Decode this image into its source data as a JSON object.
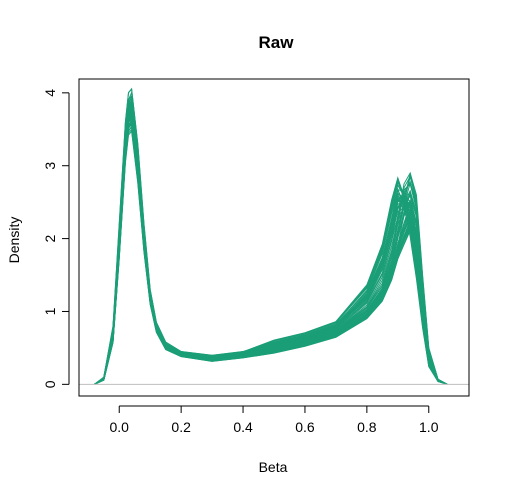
{
  "chart_data": {
    "type": "line",
    "title": "Raw",
    "xlabel": "Beta",
    "ylabel": "Density",
    "xlim": [
      -0.13,
      1.13
    ],
    "ylim": [
      -0.16,
      4.19
    ],
    "xticks": [
      0.0,
      0.2,
      0.4,
      0.6,
      0.8,
      1.0
    ],
    "xtick_labels": [
      "0.0",
      "0.2",
      "0.4",
      "0.6",
      "0.8",
      "1.0"
    ],
    "yticks": [
      0,
      1,
      2,
      3,
      4
    ],
    "ytick_labels": [
      "0",
      "1",
      "2",
      "3",
      "4"
    ],
    "grid": false,
    "legend": "none",
    "zero_line": true,
    "line_color": "#1b9e77",
    "zero_line_color": "#bebebe",
    "series_count": 60,
    "series": [
      {
        "x": [
          -0.08,
          -0.05,
          -0.02,
          0.0,
          0.02,
          0.03,
          0.04,
          0.06,
          0.08,
          0.1,
          0.12,
          0.15,
          0.2,
          0.3,
          0.4,
          0.5,
          0.6,
          0.7,
          0.8,
          0.85,
          0.88,
          0.9,
          0.92,
          0.94,
          0.96,
          0.98,
          1.0,
          1.03,
          1.06
        ],
        "y": [
          0.0,
          0.08,
          0.7,
          2.0,
          3.4,
          3.85,
          3.95,
          3.2,
          2.1,
          1.25,
          0.8,
          0.55,
          0.42,
          0.37,
          0.42,
          0.5,
          0.58,
          0.72,
          1.0,
          1.3,
          1.65,
          2.05,
          2.5,
          2.85,
          2.5,
          1.4,
          0.45,
          0.06,
          0.0
        ]
      },
      {
        "x": [
          -0.08,
          -0.05,
          -0.02,
          0.0,
          0.02,
          0.03,
          0.04,
          0.06,
          0.08,
          0.1,
          0.12,
          0.15,
          0.2,
          0.3,
          0.4,
          0.5,
          0.6,
          0.7,
          0.8,
          0.85,
          0.88,
          0.9,
          0.92,
          0.94,
          0.96,
          0.98,
          1.0,
          1.03,
          1.06
        ],
        "y": [
          0.0,
          0.06,
          0.6,
          1.8,
          3.2,
          3.6,
          3.65,
          2.9,
          1.9,
          1.15,
          0.75,
          0.5,
          0.4,
          0.33,
          0.38,
          0.45,
          0.55,
          0.68,
          0.95,
          1.2,
          1.5,
          1.8,
          2.0,
          2.2,
          1.9,
          1.1,
          0.35,
          0.05,
          0.0
        ]
      },
      {
        "x": [
          -0.08,
          -0.05,
          -0.02,
          0.0,
          0.02,
          0.03,
          0.04,
          0.06,
          0.08,
          0.1,
          0.12,
          0.15,
          0.2,
          0.3,
          0.4,
          0.5,
          0.6,
          0.7,
          0.8,
          0.85,
          0.88,
          0.9,
          0.92,
          0.94,
          0.96,
          0.98,
          1.0,
          1.03,
          1.06
        ],
        "y": [
          0.0,
          0.1,
          0.8,
          2.2,
          3.6,
          4.0,
          4.05,
          3.3,
          2.2,
          1.3,
          0.85,
          0.58,
          0.45,
          0.4,
          0.45,
          0.52,
          0.62,
          0.75,
          1.05,
          1.35,
          1.75,
          2.3,
          2.75,
          2.9,
          2.6,
          1.5,
          0.5,
          0.07,
          0.0
        ]
      },
      {
        "x": [
          -0.08,
          -0.05,
          -0.02,
          0.0,
          0.02,
          0.03,
          0.04,
          0.06,
          0.08,
          0.1,
          0.12,
          0.15,
          0.2,
          0.3,
          0.4,
          0.5,
          0.6,
          0.7,
          0.8,
          0.85,
          0.88,
          0.9,
          0.92,
          0.94,
          0.96,
          0.98,
          1.0,
          1.03,
          1.06
        ],
        "y": [
          0.0,
          0.07,
          0.65,
          1.9,
          3.3,
          3.7,
          3.8,
          3.0,
          2.0,
          1.2,
          0.78,
          0.52,
          0.41,
          0.35,
          0.44,
          0.6,
          0.7,
          0.85,
          1.35,
          1.9,
          2.5,
          2.8,
          2.55,
          2.1,
          1.5,
          0.8,
          0.25,
          0.04,
          0.0
        ]
      }
    ]
  }
}
